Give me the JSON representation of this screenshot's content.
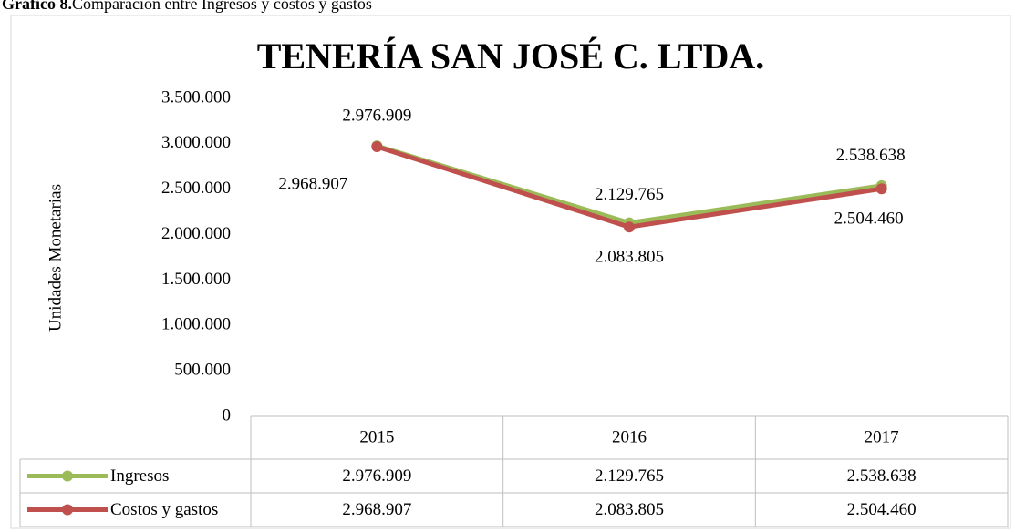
{
  "caption": {
    "label": "Gráfico 8.",
    "text": "Comparación entre Ingresos y costos y gastos"
  },
  "chart_data": {
    "type": "line",
    "title": "TENERÍA SAN JOSÉ C. LTDA.",
    "y_label": "Unidades Monetarias",
    "categories": [
      "2015",
      "2016",
      "2017"
    ],
    "series": [
      {
        "name": "Ingresos",
        "color": "#9bbb59",
        "values": [
          2976909,
          2129765,
          2538638
        ],
        "value_labels": [
          "2.976.909",
          "2.129.765",
          "2.538.638"
        ]
      },
      {
        "name": "Costos y gastos",
        "color": "#c0504d",
        "values": [
          2968907,
          2083805,
          2504460
        ],
        "value_labels": [
          "2.968.907",
          "2.083.805",
          "2.504.460"
        ]
      }
    ],
    "ylim": [
      0,
      3500000
    ],
    "yticks": [
      {
        "value": 0,
        "label": "0"
      },
      {
        "value": 500000,
        "label": "500.000"
      },
      {
        "value": 1000000,
        "label": "1.000.000"
      },
      {
        "value": 1500000,
        "label": "1.500.000"
      },
      {
        "value": 2000000,
        "label": "2.000.000"
      },
      {
        "value": 2500000,
        "label": "2.500.000"
      },
      {
        "value": 3000000,
        "label": "3.000.000"
      },
      {
        "value": 3500000,
        "label": "3.500.000"
      }
    ],
    "grid": false,
    "data_table": true
  }
}
